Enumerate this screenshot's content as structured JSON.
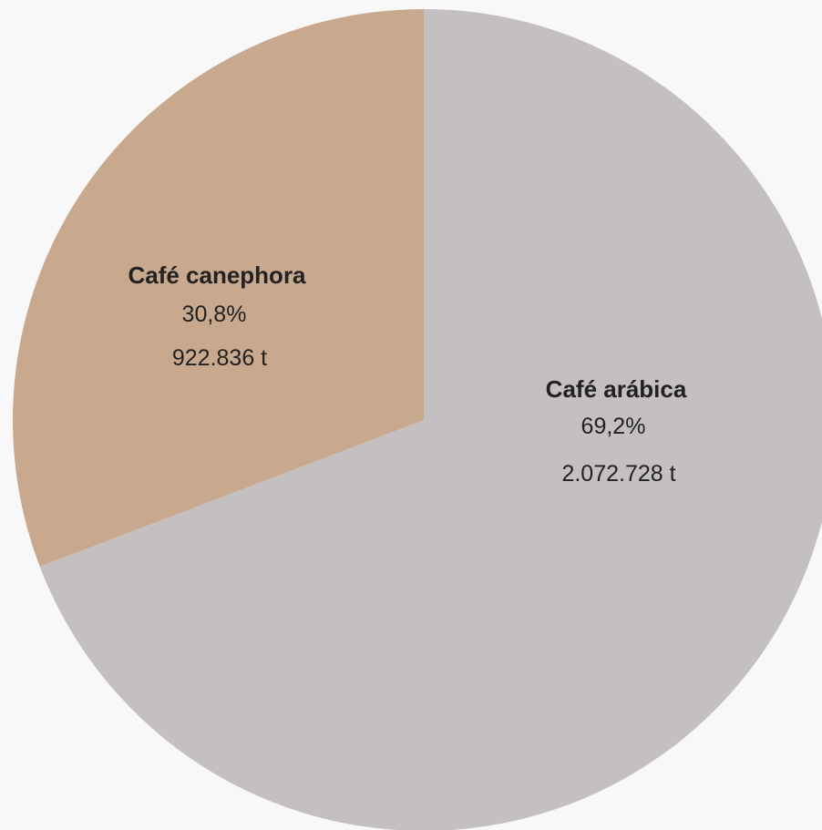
{
  "chart_data": {
    "type": "pie",
    "title": "",
    "start": "12 o'clock",
    "direction": "clockwise",
    "slices": [
      {
        "name": "Café arábica",
        "percent_label": "69,2%",
        "amount_label": "2.072.728 t",
        "value": 2072728,
        "percent": 69.2,
        "color": "#c4bfc0"
      },
      {
        "name": "Café canephora",
        "percent_label": "30,8%",
        "amount_label": "922.836 t",
        "value": 922836,
        "percent": 30.8,
        "color": "#c8a98d"
      }
    ]
  }
}
